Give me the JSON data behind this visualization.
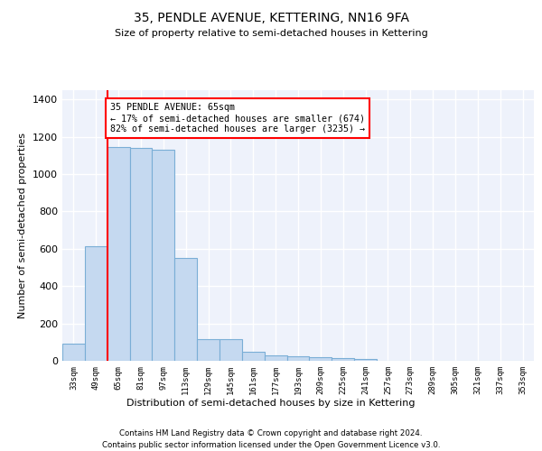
{
  "title": "35, PENDLE AVENUE, KETTERING, NN16 9FA",
  "subtitle": "Size of property relative to semi-detached houses in Kettering",
  "xlabel": "Distribution of semi-detached houses by size in Kettering",
  "ylabel": "Number of semi-detached properties",
  "property_label": "35 PENDLE AVENUE: 65sqm",
  "pct_smaller": 17,
  "pct_larger": 82,
  "count_smaller": 674,
  "count_larger": 3235,
  "bin_labels": [
    "33sqm",
    "49sqm",
    "65sqm",
    "81sqm",
    "97sqm",
    "113sqm",
    "129sqm",
    "145sqm",
    "161sqm",
    "177sqm",
    "193sqm",
    "209sqm",
    "225sqm",
    "241sqm",
    "257sqm",
    "273sqm",
    "289sqm",
    "305sqm",
    "321sqm",
    "337sqm",
    "353sqm"
  ],
  "bin_values": [
    90,
    615,
    1145,
    1140,
    1130,
    550,
    115,
    115,
    50,
    30,
    22,
    18,
    15,
    10,
    0,
    0,
    0,
    0,
    0,
    0,
    0
  ],
  "bar_color": "#c5d9f0",
  "bar_edge_color": "#7aaed6",
  "redline_bin_index": 2,
  "ylim": [
    0,
    1450
  ],
  "yticks": [
    0,
    200,
    400,
    600,
    800,
    1000,
    1200,
    1400
  ],
  "background_color": "#eef2fb",
  "grid_color": "#ffffff",
  "footer_line1": "Contains HM Land Registry data © Crown copyright and database right 2024.",
  "footer_line2": "Contains public sector information licensed under the Open Government Licence v3.0."
}
